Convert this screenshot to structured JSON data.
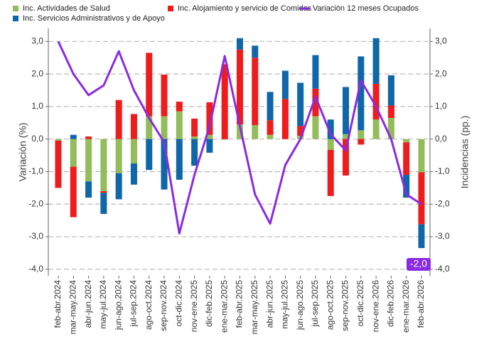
{
  "chart_data": {
    "type": "bar",
    "categories": [
      "feb-abr.2024",
      "mar-may.2024",
      "abr-jun.2024",
      "may-jul.2024",
      "jun-ago.2024",
      "jul-sep.2024",
      "ago-oct.2024",
      "sep-nov.2024",
      "oct-dic.2024",
      "nov-ene.2025",
      "dic-feb.2025",
      "ene-mar.2025",
      "feb-abr.2025",
      "mar-may.2025",
      "abr-jun.2025",
      "may-jul.2025",
      "jun-ago.2025",
      "jul-sep.2025",
      "ago-oct.2025",
      "sep-nov.2025",
      "oct-dic.2025",
      "nov-ene.2026",
      "dic-feb.2026",
      "ene-mar.2026",
      "feb-abr.2026"
    ],
    "series": [
      {
        "name": "Inc. Actividades de Salud",
        "color": "#92bd5a",
        "values": [
          -0.05,
          -0.85,
          -1.3,
          -1.6,
          -1.05,
          -0.75,
          0.7,
          0.7,
          0.85,
          0.08,
          0.13,
          -0.02,
          0.45,
          0.43,
          0.13,
          0,
          0.1,
          0.7,
          -0.33,
          0.15,
          0.27,
          0.6,
          0.65,
          -0.1,
          -1.02
        ]
      },
      {
        "name": "Inc. Alojamiento y servicio de Comidas",
        "color": "#ee1c1c",
        "values": [
          -1.45,
          -1.55,
          0.08,
          -0.05,
          1.2,
          0.77,
          1.95,
          1.28,
          0.3,
          0.55,
          1.0,
          2.3,
          2.3,
          2.07,
          0.45,
          1.23,
          0.3,
          0.85,
          -1.42,
          -1.12,
          -0.17,
          1.1,
          0.38,
          -1.0,
          -1.6
        ]
      },
      {
        "name": "Inc. Servicios Administrativos y de Apoyo",
        "color": "#0f66a8",
        "values": [
          0,
          0.13,
          -0.5,
          -0.65,
          -0.8,
          -0.65,
          -0.95,
          -1.55,
          -1.25,
          -0.82,
          -0.42,
          0,
          0.35,
          0.37,
          0.87,
          0.87,
          1.33,
          1.03,
          0.6,
          1.45,
          2.27,
          1.4,
          0.93,
          -0.7,
          -0.73
        ]
      },
      {
        "name": "Variación 12 meses Ocupados",
        "color": "#8a2be2",
        "type": "line",
        "axis": "y2",
        "values": [
          3.0,
          2.0,
          1.35,
          1.65,
          2.7,
          1.5,
          0.65,
          -0.1,
          -2.9,
          -1.1,
          0.4,
          2.55,
          0.4,
          -1.7,
          -2.6,
          -0.8,
          0.0,
          1.3,
          0.15,
          -0.35,
          1.8,
          1.0,
          0.0,
          -1.7,
          -2.0
        ],
        "value_labels": [
          null,
          null,
          null,
          null,
          null,
          null,
          null,
          null,
          null,
          null,
          null,
          null,
          null,
          null,
          null,
          null,
          null,
          null,
          null,
          null,
          null,
          null,
          null,
          null,
          "-2,0"
        ]
      }
    ],
    "y_label": "Variación (%)",
    "y2_label": "Incidencias (pp.)",
    "ylim": [
      -4.2,
      3.4
    ],
    "yticks": [
      {
        "value": -4,
        "label": "-4,0"
      },
      {
        "value": -3,
        "label": "-3,0"
      },
      {
        "value": -2,
        "label": "-2,0"
      },
      {
        "value": -1,
        "label": "-1,0"
      },
      {
        "value": 0,
        "label": "0,0"
      },
      {
        "value": 1,
        "label": "1,0"
      },
      {
        "value": 2,
        "label": "2,0"
      },
      {
        "value": 3,
        "label": "3,0"
      }
    ],
    "y2lim": [
      -4.2,
      3.4
    ],
    "y2ticks": [
      {
        "value": -4,
        "label": "-4,0"
      },
      {
        "value": -3,
        "label": "-3,0"
      },
      {
        "value": -2,
        "label": "-2,0"
      },
      {
        "value": -1,
        "label": "-1,0"
      },
      {
        "value": 0,
        "label": "0,0"
      },
      {
        "value": 1,
        "label": "1,0"
      },
      {
        "value": 2,
        "label": "2,0"
      },
      {
        "value": 3,
        "label": "3,0"
      }
    ],
    "grid": true,
    "stacked": true
  }
}
